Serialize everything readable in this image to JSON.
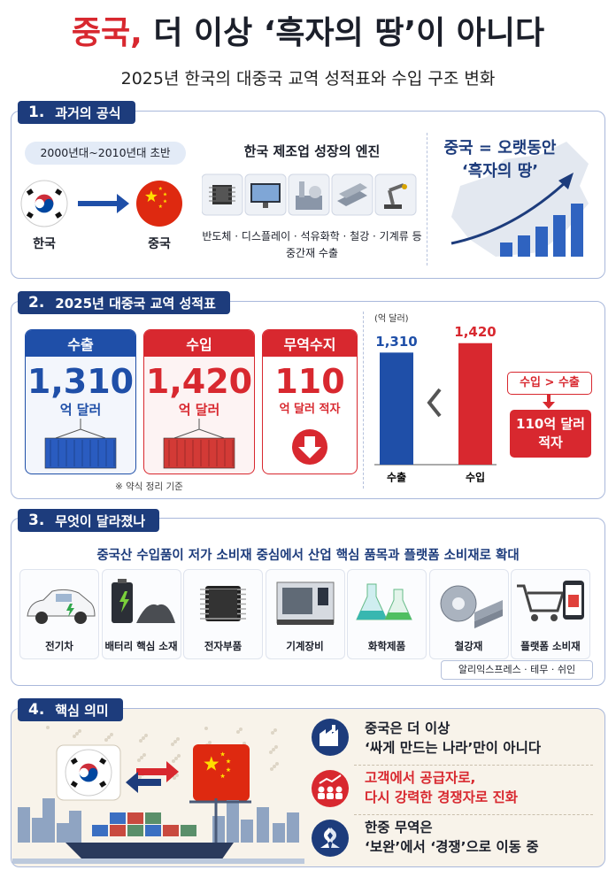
{
  "header": {
    "title_red": "중국,",
    "title_rest": "더 이상 ‘흑자의 땅’이 아니다",
    "subtitle": "2025년 한국의 대중국 교역 성적표와 수입 구조 변화"
  },
  "sections": [
    {
      "number": "1.",
      "title": "과거의 공식",
      "period": "2000년대~2010년대 초반",
      "from": "한국",
      "to": "중국",
      "engine_title": "한국 제조업 성장의 엔진",
      "engine_items": "반도체 · 디스플레이 · 석유화학 · 철강 · 기계류 등",
      "engine_note": "중간재 수출",
      "claim_line1": "중국 = 오랫동안",
      "claim_line2": "‘흑자의 땅’"
    },
    {
      "number": "2.",
      "title": "2025년 대중국 교역 성적표",
      "cards": [
        {
          "label": "수출",
          "value": "1,310",
          "unit": "억 달러"
        },
        {
          "label": "수입",
          "value": "1,420",
          "unit": "억 달러"
        },
        {
          "label": "무역수지",
          "value": "110",
          "unit": "억 달러 적자"
        }
      ],
      "note": "※ 약식 정리 기준",
      "compare": "수입 > 수출",
      "result": "110억 달러 적자"
    },
    {
      "number": "3.",
      "title": "무엇이 달라졌나",
      "lead": "중국산 수입품이 저가 소비재 중심에서 산업 핵심 품목과 플랫폼 소비재로 확대",
      "items": [
        "전기차",
        "배터리 핵심 소재",
        "전자부품",
        "기계장비",
        "화학제품",
        "철강재",
        "플랫폼 소비재"
      ],
      "platforms": "알리익스프레스 · 테무 · 쉬인"
    },
    {
      "number": "4.",
      "title": "핵심 의미",
      "points": [
        {
          "line1": "중국은 더 이상",
          "line2": "‘싸게 만드는 나라’만이 아니다"
        },
        {
          "line1": "고객에서 공급자로,",
          "line2": "다시 강력한 경쟁자로 진화"
        },
        {
          "line1": "한중 무역은",
          "line2": "‘보완’에서 ‘경쟁’으로 이동 중"
        }
      ]
    }
  ],
  "chart_data": {
    "type": "bar",
    "unit_label": "(억 달러)",
    "categories": [
      "수출",
      "수입"
    ],
    "values": [
      1310,
      1420
    ],
    "value_labels": [
      "1,310",
      "1,420"
    ],
    "colors": [
      "#1f4fa8",
      "#d8282f"
    ],
    "ylim": [
      0,
      1500
    ]
  }
}
